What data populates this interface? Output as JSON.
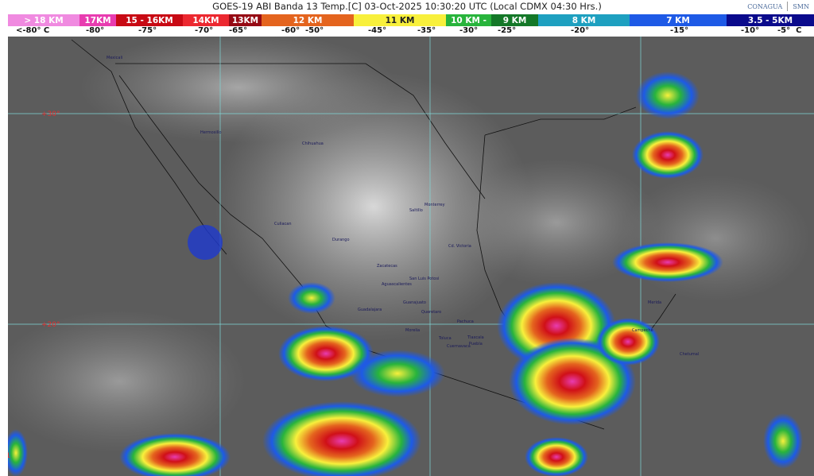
{
  "header": {
    "title": "GOES-19 ABI Banda 13 Temp.[C] 03-Oct-2025 10:30:20 UTC (Local CDMX  04:30 Hrs.)",
    "logos": [
      "CONAGUA",
      "SMN"
    ]
  },
  "legend": {
    "segments": [
      {
        "label": "> 18 KM",
        "color": "#f08ae0"
      },
      {
        "label": "17KM",
        "color": "#e83cb0"
      },
      {
        "label": "15 - 16KM",
        "color": "#c80a14"
      },
      {
        "label": "14KM",
        "color": "#ec2830"
      },
      {
        "label": "13KM",
        "color": "#960a14"
      },
      {
        "label": "12 KM",
        "color": "#e4641e"
      },
      {
        "label": "11 KM",
        "color": "#f8f03c"
      },
      {
        "label": "10 KM -",
        "color": "#28b43c"
      },
      {
        "label": "9 KM",
        "color": "#147828"
      },
      {
        "label": "8 KM",
        "color": "#1ea0c0"
      },
      {
        "label": "7 KM",
        "color": "#1e5ae6"
      },
      {
        "label": "3.5 - 5KM",
        "color": "#0a0a8c"
      }
    ],
    "temps": [
      "<-80° C",
      "-80°",
      "-75°",
      "-70°",
      "-65°",
      "-60°  -50°",
      "-45°",
      "-35°",
      "-30°",
      "-25°",
      "-20°",
      "-15°",
      "-10°",
      "-5°  C"
    ]
  },
  "map": {
    "latitude_labels": [
      "+30°",
      "+20°",
      "+1"
    ],
    "cities": [
      "Mexicali",
      "Hermosillo",
      "Chihuahua",
      "Culiacan",
      "Durango",
      "Saltillo",
      "Monterrey",
      "Cd. Victoria",
      "Zacatecas",
      "San Luis Potosi",
      "Aguascalientes",
      "Guadalajara",
      "Guanajuato",
      "Queretaro",
      "Pachuca",
      "Morelia",
      "Toluca",
      "Tlaxcala",
      "Puebla",
      "Cuernavaca",
      "Merida",
      "Campeche",
      "Chetumal"
    ]
  }
}
